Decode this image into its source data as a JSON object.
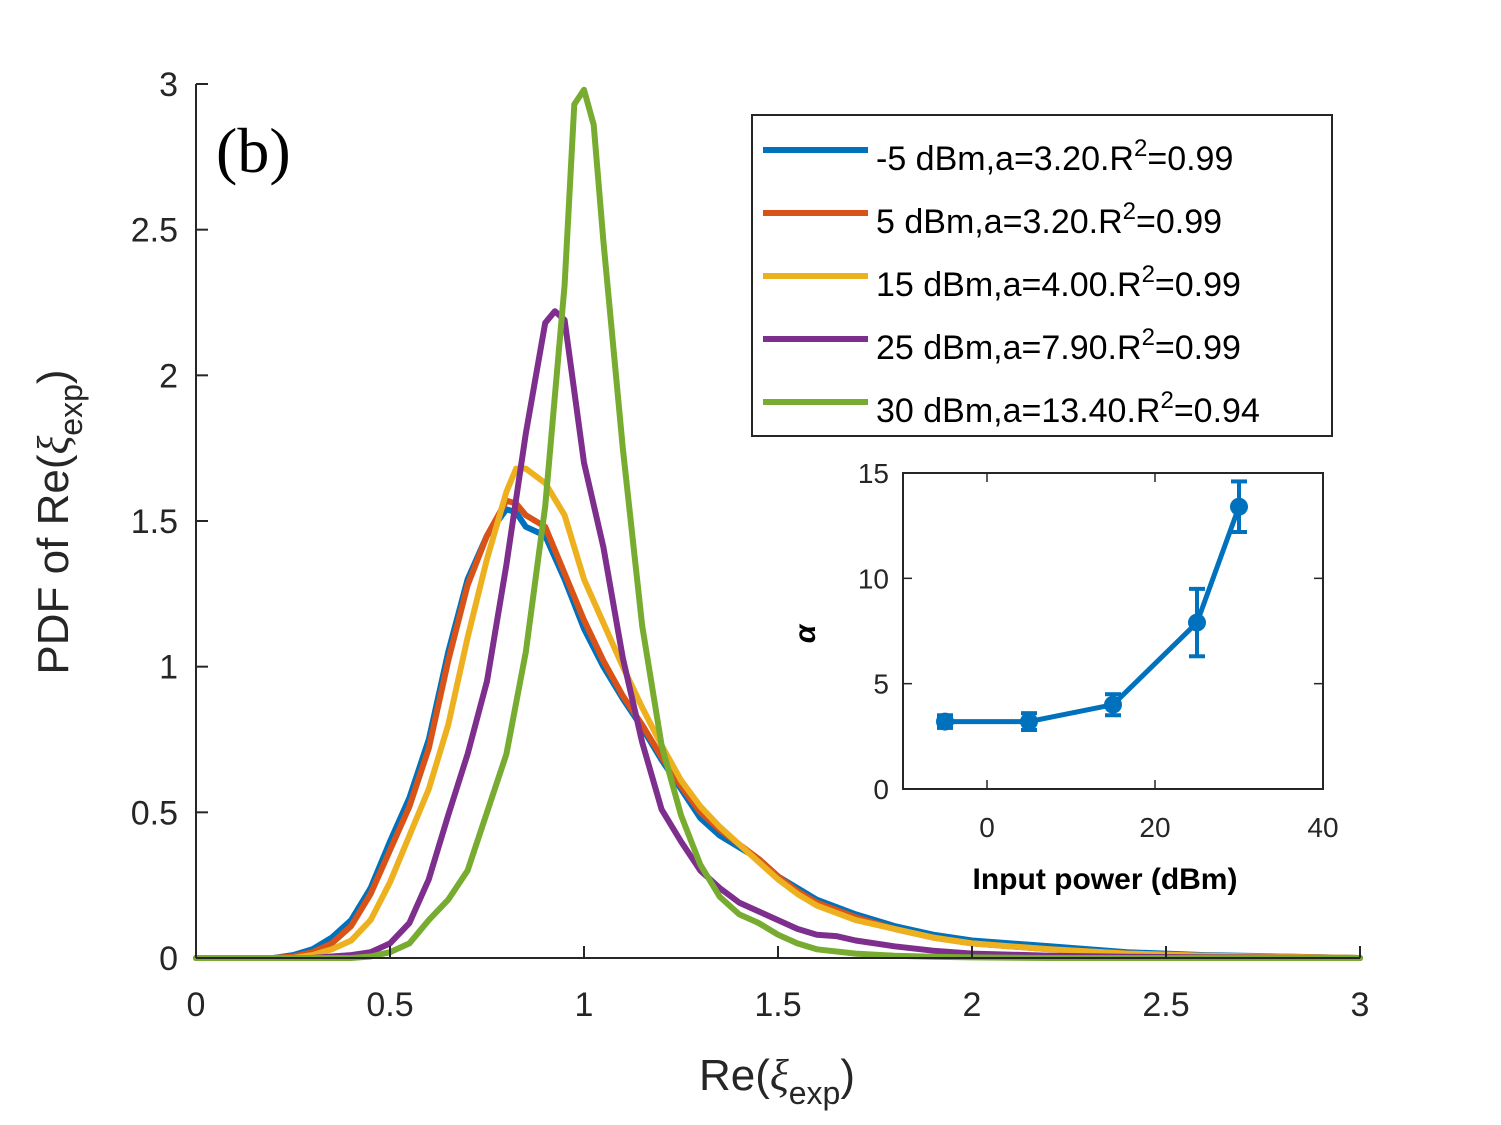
{
  "chart_data": [
    {
      "type": "line",
      "panel_label": "(b)",
      "xlabel": "Re(",
      "xlabel_symbol": "ξ",
      "xlabel_subscript": "exp",
      "xlabel_close": ")",
      "ylabel": "PDF of Re(",
      "ylabel_symbol": "ξ",
      "ylabel_subscript": "exp",
      "ylabel_close": ")",
      "xlim": [
        0,
        3
      ],
      "ylim": [
        0,
        3
      ],
      "xticks": [
        0,
        0.5,
        1,
        1.5,
        2,
        2.5,
        3
      ],
      "xtick_labels": [
        "0",
        "0.5",
        "1",
        "1.5",
        "2",
        "2.5",
        "3"
      ],
      "yticks": [
        0,
        0.5,
        1,
        1.5,
        2,
        2.5,
        3
      ],
      "ytick_labels": [
        "0",
        "0.5",
        "1",
        "1.5",
        "2",
        "2.5",
        "3"
      ],
      "legend_position": "top-right",
      "series": [
        {
          "name": "-5 dBm,a=3.20.R",
          "legend_sup": "2",
          "legend_tail": "=0.99",
          "color": "#0072BD",
          "x": [
            0,
            0.1,
            0.2,
            0.25,
            0.3,
            0.35,
            0.4,
            0.45,
            0.5,
            0.55,
            0.6,
            0.65,
            0.7,
            0.75,
            0.8,
            0.825,
            0.85,
            0.9,
            0.95,
            1.0,
            1.05,
            1.1,
            1.15,
            1.2,
            1.25,
            1.3,
            1.35,
            1.4,
            1.45,
            1.5,
            1.55,
            1.6,
            1.7,
            1.8,
            1.9,
            2.0,
            2.2,
            2.4,
            2.6,
            2.8,
            3.0
          ],
          "y": [
            0,
            0,
            0,
            0.01,
            0.03,
            0.07,
            0.13,
            0.24,
            0.4,
            0.55,
            0.75,
            1.05,
            1.3,
            1.45,
            1.54,
            1.53,
            1.48,
            1.45,
            1.3,
            1.13,
            1.0,
            0.89,
            0.79,
            0.68,
            0.58,
            0.48,
            0.42,
            0.38,
            0.34,
            0.28,
            0.24,
            0.2,
            0.15,
            0.11,
            0.08,
            0.06,
            0.04,
            0.02,
            0.01,
            0.005,
            0
          ]
        },
        {
          "name": "5 dBm,a=3.20.R",
          "legend_sup": "2",
          "legend_tail": "=0.99",
          "color": "#D95319",
          "x": [
            0,
            0.1,
            0.2,
            0.25,
            0.3,
            0.35,
            0.4,
            0.45,
            0.5,
            0.55,
            0.6,
            0.65,
            0.7,
            0.75,
            0.8,
            0.825,
            0.85,
            0.9,
            0.95,
            1.0,
            1.05,
            1.1,
            1.15,
            1.2,
            1.25,
            1.3,
            1.35,
            1.4,
            1.45,
            1.5,
            1.55,
            1.6,
            1.7,
            1.8,
            1.9,
            2.0,
            2.2,
            2.4,
            2.6,
            2.8,
            3.0
          ],
          "y": [
            0,
            0,
            0,
            0.005,
            0.02,
            0.05,
            0.11,
            0.22,
            0.37,
            0.52,
            0.72,
            1.02,
            1.28,
            1.45,
            1.57,
            1.56,
            1.52,
            1.48,
            1.32,
            1.16,
            1.02,
            0.9,
            0.8,
            0.69,
            0.59,
            0.5,
            0.44,
            0.39,
            0.34,
            0.28,
            0.23,
            0.19,
            0.14,
            0.1,
            0.07,
            0.05,
            0.03,
            0.015,
            0.008,
            0.004,
            0
          ]
        },
        {
          "name": "15 dBm,a=4.00.R",
          "legend_sup": "2",
          "legend_tail": "=0.99",
          "color": "#EDB120",
          "x": [
            0,
            0.1,
            0.2,
            0.25,
            0.3,
            0.35,
            0.4,
            0.45,
            0.5,
            0.55,
            0.6,
            0.65,
            0.7,
            0.75,
            0.8,
            0.825,
            0.85,
            0.9,
            0.95,
            1.0,
            1.05,
            1.1,
            1.15,
            1.2,
            1.25,
            1.3,
            1.35,
            1.4,
            1.45,
            1.5,
            1.55,
            1.6,
            1.7,
            1.8,
            1.9,
            2.0,
            2.2,
            2.4,
            2.6,
            2.8,
            3.0
          ],
          "y": [
            0,
            0,
            0,
            0,
            0.01,
            0.03,
            0.06,
            0.13,
            0.26,
            0.42,
            0.58,
            0.8,
            1.1,
            1.37,
            1.6,
            1.68,
            1.68,
            1.63,
            1.52,
            1.3,
            1.15,
            1.0,
            0.86,
            0.73,
            0.61,
            0.52,
            0.45,
            0.39,
            0.33,
            0.27,
            0.22,
            0.18,
            0.13,
            0.1,
            0.07,
            0.05,
            0.03,
            0.015,
            0.008,
            0.004,
            0
          ]
        },
        {
          "name": "25 dBm,a=7.90.R",
          "legend_sup": "2",
          "legend_tail": "=0.99",
          "color": "#7E2F8E",
          "x": [
            0,
            0.1,
            0.2,
            0.3,
            0.35,
            0.4,
            0.45,
            0.5,
            0.55,
            0.6,
            0.65,
            0.7,
            0.75,
            0.8,
            0.85,
            0.9,
            0.925,
            0.95,
            1.0,
            1.05,
            1.1,
            1.15,
            1.2,
            1.25,
            1.3,
            1.35,
            1.4,
            1.45,
            1.5,
            1.55,
            1.6,
            1.65,
            1.7,
            1.8,
            1.9,
            2.0,
            2.2,
            2.4,
            2.6,
            2.8,
            3.0
          ],
          "y": [
            0,
            0,
            0,
            0,
            0.005,
            0.01,
            0.02,
            0.05,
            0.12,
            0.27,
            0.49,
            0.7,
            0.95,
            1.35,
            1.8,
            2.18,
            2.22,
            2.19,
            1.7,
            1.41,
            1.03,
            0.74,
            0.51,
            0.4,
            0.3,
            0.24,
            0.19,
            0.16,
            0.13,
            0.1,
            0.08,
            0.075,
            0.06,
            0.04,
            0.025,
            0.015,
            0.008,
            0.004,
            0.002,
            0.001,
            0
          ]
        },
        {
          "name": "30 dBm,a=13.40.R",
          "legend_sup": "2",
          "legend_tail": "=0.94",
          "color": "#77AC30",
          "x": [
            0,
            0.1,
            0.2,
            0.3,
            0.4,
            0.45,
            0.5,
            0.55,
            0.6,
            0.65,
            0.7,
            0.75,
            0.8,
            0.85,
            0.9,
            0.95,
            0.975,
            1.0,
            1.025,
            1.05,
            1.1,
            1.15,
            1.2,
            1.25,
            1.3,
            1.35,
            1.4,
            1.45,
            1.5,
            1.55,
            1.6,
            1.7,
            1.8,
            1.9,
            2.0,
            2.2,
            2.4,
            2.6,
            2.8,
            3.0
          ],
          "y": [
            0,
            0,
            0,
            0,
            0,
            0.005,
            0.02,
            0.05,
            0.13,
            0.2,
            0.3,
            0.5,
            0.7,
            1.05,
            1.55,
            2.31,
            2.93,
            2.98,
            2.86,
            2.46,
            1.75,
            1.14,
            0.73,
            0.49,
            0.32,
            0.21,
            0.15,
            0.12,
            0.08,
            0.05,
            0.03,
            0.015,
            0.008,
            0.004,
            0.002,
            0,
            0,
            0,
            0,
            0
          ]
        }
      ]
    },
    {
      "type": "line",
      "subtype": "errorbar",
      "title": "",
      "xlabel": "Input power (dBm)",
      "ylabel": "α",
      "xlim": [
        -10,
        40
      ],
      "ylim": [
        0,
        15
      ],
      "xticks": [
        0,
        20,
        40
      ],
      "xtick_labels": [
        "0",
        "20",
        "40"
      ],
      "yticks": [
        0,
        5,
        10,
        15
      ],
      "ytick_labels": [
        "0",
        "5",
        "10",
        "15"
      ],
      "color": "#0072BD",
      "x": [
        -5,
        5,
        15,
        25,
        30
      ],
      "y": [
        3.2,
        3.2,
        4.0,
        7.9,
        13.4
      ],
      "err": [
        0.3,
        0.4,
        0.5,
        1.6,
        1.2
      ]
    }
  ]
}
